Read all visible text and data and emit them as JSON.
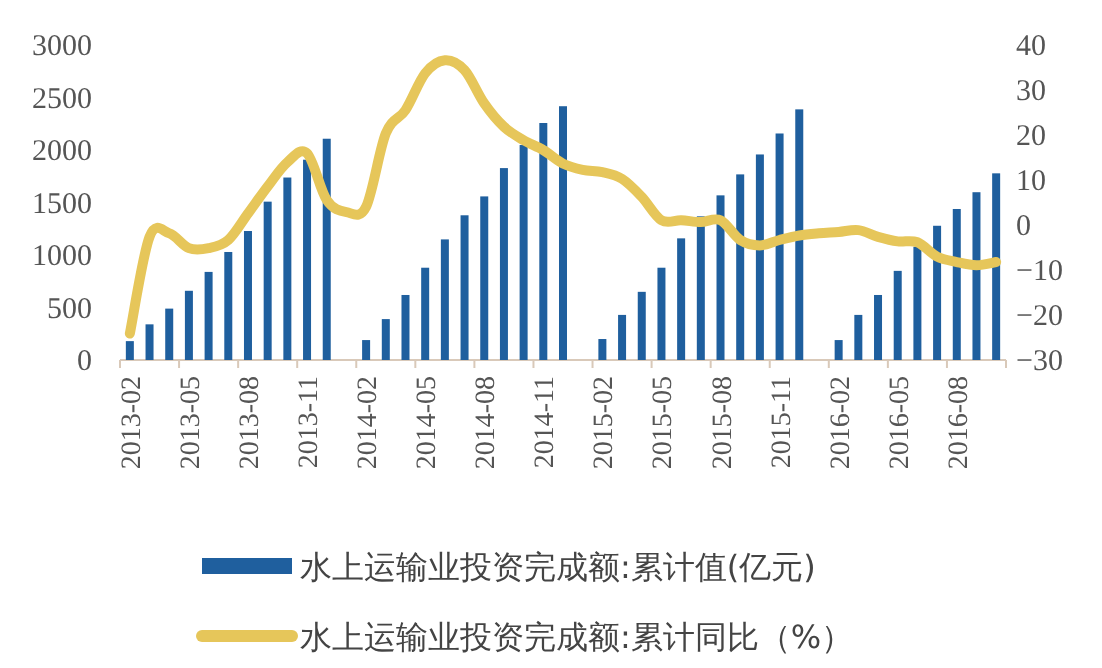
{
  "chart_data": {
    "type": "bar",
    "categories": [
      "2013-02",
      null,
      null,
      "2013-05",
      null,
      null,
      "2013-08",
      null,
      null,
      "2013-11",
      null,
      null,
      "2014-02",
      null,
      null,
      "2014-05",
      null,
      null,
      "2014-08",
      null,
      null,
      "2014-11",
      null,
      null,
      "2015-02",
      null,
      null,
      "2015-05",
      null,
      null,
      "2015-08",
      null,
      null,
      "2015-11",
      null,
      null,
      "2016-02",
      null,
      null,
      "2016-05",
      null,
      null,
      "2016-08",
      null,
      null
    ],
    "series": [
      {
        "name": "水上运输业投资完成额:累计值(亿元)",
        "color": "#1f5f9e",
        "values": [
          180,
          340,
          490,
          660,
          840,
          1030,
          1230,
          1510,
          1740,
          1910,
          2110,
          null,
          190,
          390,
          620,
          880,
          1150,
          1380,
          1560,
          1830,
          2050,
          2260,
          2420,
          null,
          200,
          430,
          650,
          880,
          1160,
          1370,
          1570,
          1770,
          1960,
          2160,
          2390,
          null,
          190,
          430,
          620,
          850,
          1080,
          1280,
          1440,
          1600,
          1780
        ]
      },
      {
        "name": "水上运输业投资完成额:累计同比（%）",
        "type": "line",
        "axis": "y2",
        "color": "#e6c65a",
        "values": [
          -24.1,
          -2.6,
          -1.8,
          -5.1,
          -5.1,
          -3.3,
          2.6,
          8.6,
          14,
          16,
          5.6,
          2.9,
          4.1,
          20.4,
          25.6,
          33.8,
          36.7,
          34.5,
          27.1,
          21.9,
          18.9,
          16.7,
          13.7,
          12.3,
          11.8,
          10.3,
          6.3,
          1.1,
          1.1,
          0.7,
          1.1,
          -3.3,
          -4.5,
          -3.3,
          -2.3,
          -1.8,
          -1.5,
          -1.1,
          -2.6,
          -3.6,
          -3.8,
          -7,
          -8.2,
          -8.9,
          -8.2
        ]
      }
    ],
    "ylim": [
      0,
      3000
    ],
    "yticks": [
      0,
      500,
      1000,
      1500,
      2000,
      2500,
      3000
    ],
    "y2lim": [
      -30,
      40
    ],
    "y2ticks": [
      -30,
      -20,
      -10,
      0,
      10,
      20,
      30,
      40
    ],
    "legend": "bottom",
    "grid": false
  }
}
